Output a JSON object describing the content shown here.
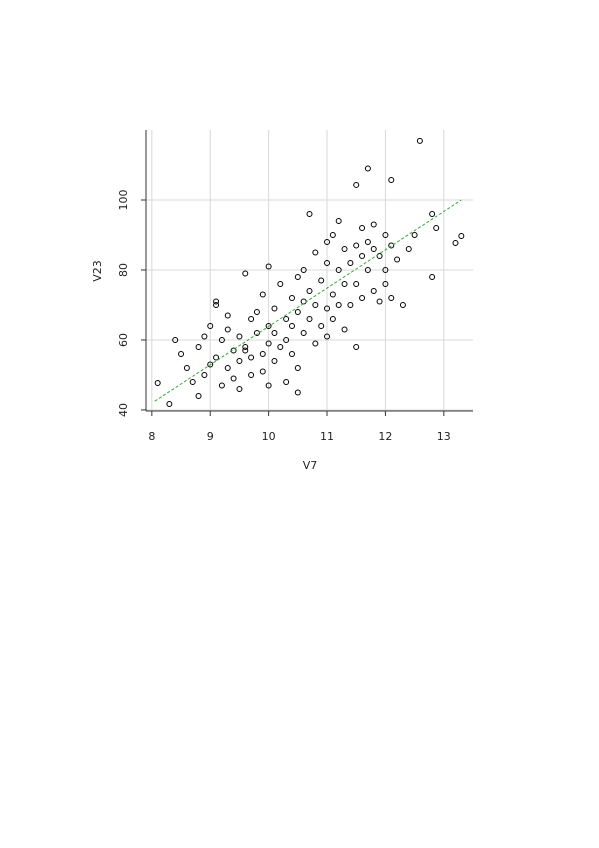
{
  "chart_data": {
    "type": "scatter",
    "x_label": "V7",
    "y_label": "V23",
    "xlim": [
      7.9,
      13.5
    ],
    "ylim": [
      39.7,
      120
    ],
    "xticks": [
      8,
      9,
      10,
      11,
      12,
      13
    ],
    "yticks": [
      40,
      60,
      80,
      100
    ],
    "grid": true,
    "color": "#000000",
    "trend": {
      "color": "#33aa33",
      "x": [
        8.05,
        13.3
      ],
      "y": [
        42.5,
        100
      ]
    },
    "x": [
      8.1,
      8.3,
      8.4,
      8.5,
      8.6,
      8.7,
      8.8,
      8.8,
      8.9,
      9.0,
      9.0,
      9.1,
      9.1,
      9.2,
      9.2,
      9.3,
      9.3,
      9.4,
      9.4,
      9.5,
      9.5,
      9.5,
      9.6,
      9.6,
      9.7,
      9.7,
      9.7,
      9.8,
      9.8,
      9.9,
      9.9,
      9.9,
      10.0,
      10.0,
      10.0,
      10.1,
      10.1,
      10.1,
      10.2,
      10.2,
      10.3,
      10.3,
      10.3,
      10.4,
      10.4,
      10.4,
      10.5,
      10.5,
      10.5,
      10.6,
      10.6,
      10.6,
      10.7,
      10.7,
      10.7,
      10.8,
      10.8,
      10.8,
      10.9,
      10.9,
      11.0,
      11.0,
      11.0,
      11.0,
      11.1,
      11.1,
      11.1,
      11.2,
      11.2,
      11.2,
      11.3,
      11.3,
      11.3,
      11.4,
      11.4,
      11.5,
      11.5,
      11.5,
      11.6,
      11.6,
      11.6,
      11.7,
      11.7,
      11.8,
      11.8,
      11.8,
      11.9,
      11.9,
      12.0,
      12.0,
      12.0,
      12.1,
      12.1,
      12.2,
      12.3,
      12.4,
      12.5,
      12.59,
      12.8,
      12.8,
      12.87,
      13.2,
      13.3,
      11.7,
      11.5,
      12.1,
      9.1,
      9.6,
      10.0,
      10.5,
      8.9,
      9.3
    ],
    "y": [
      47.7,
      41.7,
      60,
      56,
      52,
      48,
      44,
      58,
      50,
      64,
      53,
      70,
      55,
      60,
      47,
      52,
      63,
      49,
      57,
      54,
      61,
      46,
      58,
      79,
      66,
      50,
      55,
      62,
      68,
      56,
      51,
      73,
      59,
      64,
      81,
      54,
      69,
      62,
      58,
      76,
      66,
      48,
      60,
      72,
      56,
      64,
      78,
      52,
      68,
      62,
      71,
      80,
      66,
      74,
      96,
      59,
      70,
      85,
      64,
      77,
      69,
      82,
      61,
      88,
      73,
      90,
      66,
      80,
      94,
      70,
      76,
      86,
      63,
      82,
      70,
      87,
      58,
      76,
      84,
      92,
      72,
      80,
      88,
      74,
      86,
      93,
      71,
      84,
      80,
      90,
      76,
      87,
      72,
      83,
      70,
      86,
      90,
      116.9,
      78,
      96,
      92,
      87.7,
      89.7,
      109,
      104.3,
      105.7,
      71,
      57,
      47,
      45,
      61,
      67
    ]
  }
}
